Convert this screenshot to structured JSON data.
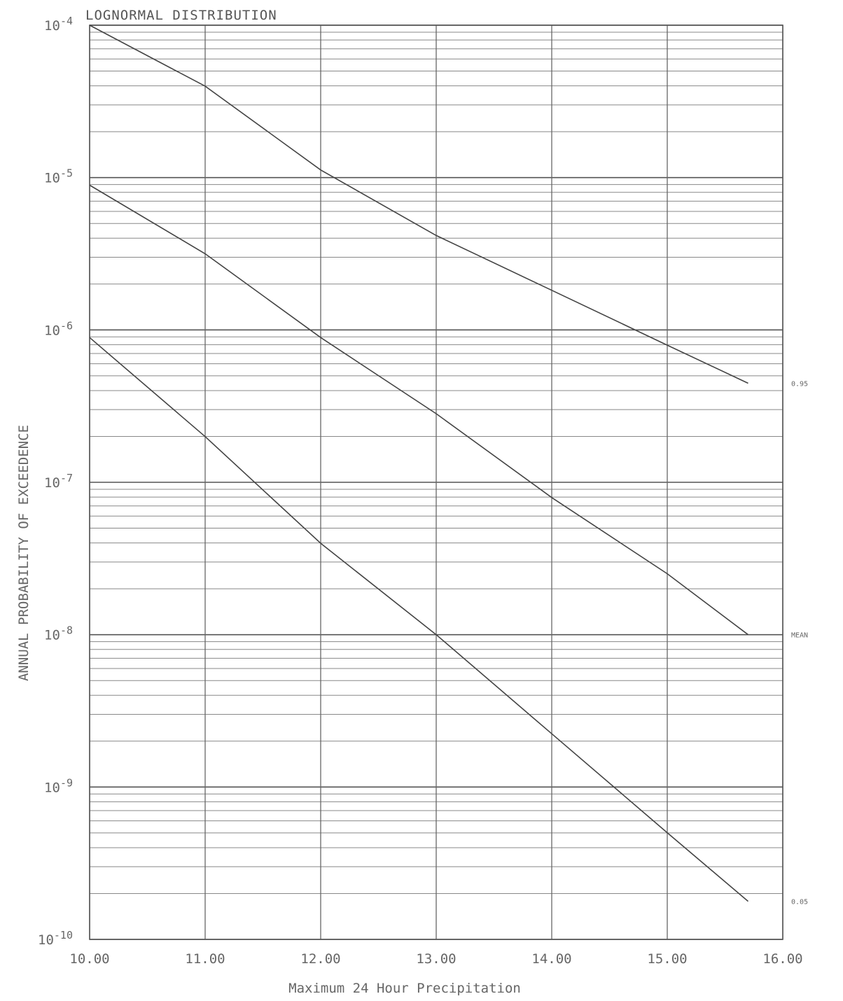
{
  "chart_data": {
    "type": "line",
    "title": "LOGNORMAL DISTRIBUTION",
    "xlabel": "Maximum 24 Hour Precipitation",
    "ylabel": "ANNUAL PROBABILITY OF EXCEEDENCE",
    "x_tick_labels": [
      "10.00",
      "11.00",
      "12.00",
      "13.00",
      "14.00",
      "15.00",
      "16.00"
    ],
    "y_tick_labels": [
      "10-4",
      "10-5",
      "10-6",
      "10-7",
      "10-8",
      "10-9",
      "10-10"
    ],
    "xlim": [
      10,
      16
    ],
    "ylim_log10": [
      -10,
      -4
    ],
    "y_scale": "log",
    "grid": true,
    "series": [
      {
        "name": "0.95",
        "x": [
          10.0,
          11.0,
          12.0,
          13.0,
          14.0,
          15.0,
          15.7
        ],
        "y_log10": [
          -4.0,
          -4.4,
          -4.95,
          -5.38,
          -5.74,
          -6.1,
          -6.35
        ]
      },
      {
        "name": "MEAN",
        "x": [
          10.0,
          11.0,
          12.0,
          13.0,
          14.0,
          15.0,
          15.7
        ],
        "y_log10": [
          -5.05,
          -5.5,
          -6.05,
          -6.55,
          -7.1,
          -7.6,
          -8.0
        ]
      },
      {
        "name": "0.05",
        "x": [
          10.0,
          11.0,
          12.0,
          13.0,
          14.0,
          15.0,
          15.7
        ],
        "y_log10": [
          -6.05,
          -6.7,
          -7.4,
          -8.0,
          -8.65,
          -9.3,
          -9.75
        ]
      }
    ]
  }
}
